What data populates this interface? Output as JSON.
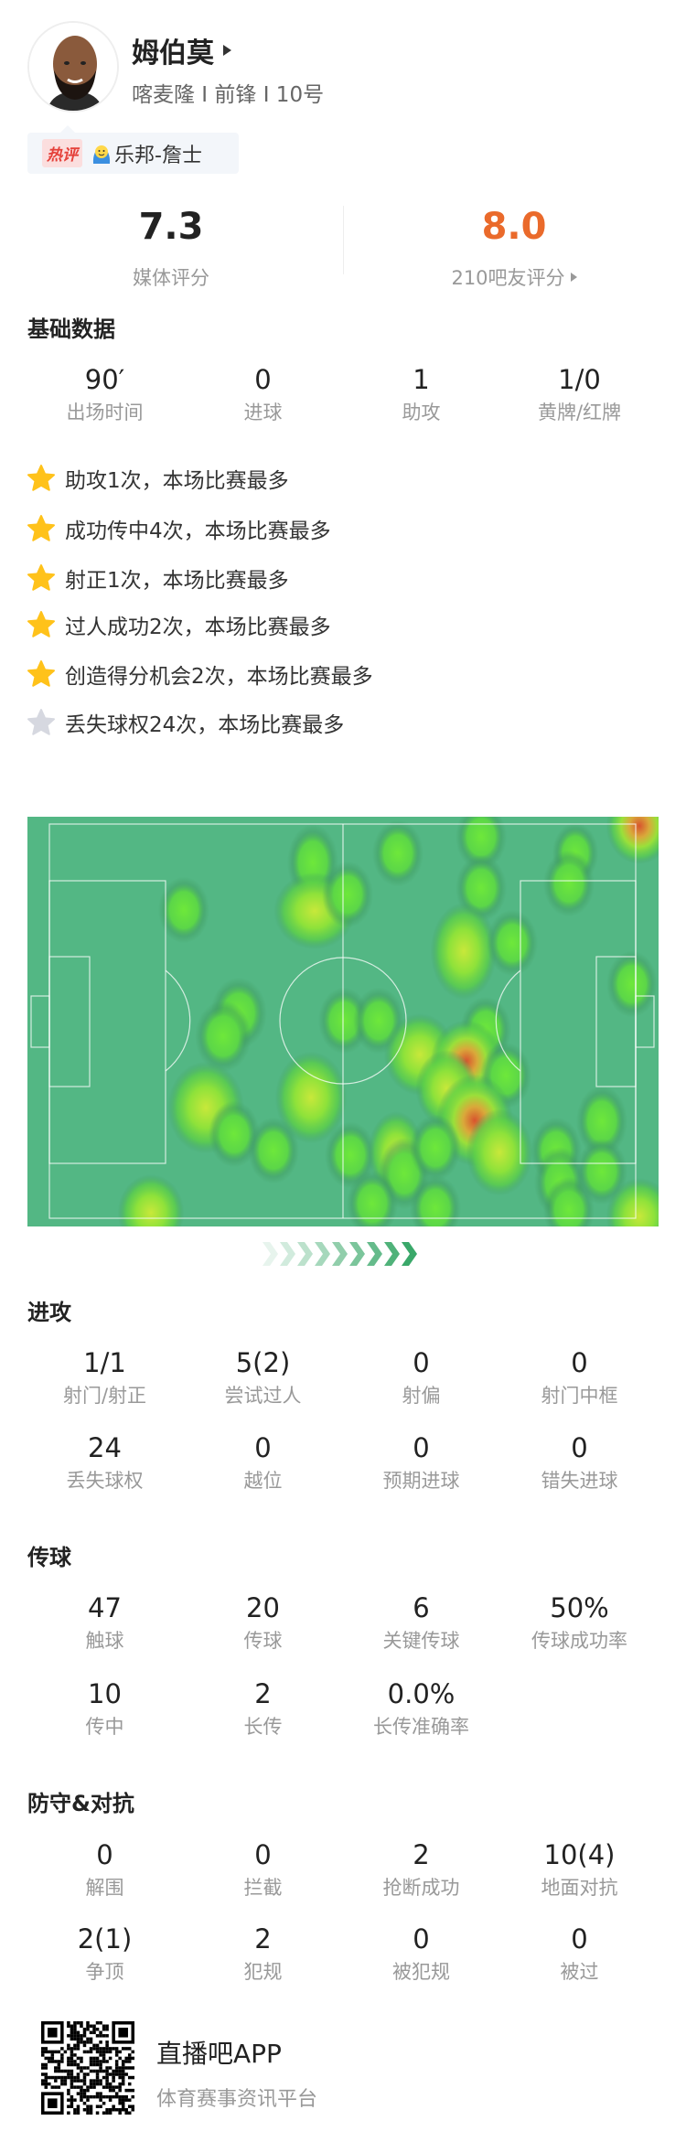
{
  "player": {
    "name": "姆伯莫",
    "subtitle": "喀麦隆 I 前锋 I 10号"
  },
  "hot_comment": {
    "tag": "热评",
    "user": "乐邦-詹士"
  },
  "ratings": {
    "media": {
      "value": "7.3",
      "label": "媒体评分"
    },
    "fans": {
      "value": "8.0",
      "label": "210吧友评分",
      "color": "#ea6a2b"
    }
  },
  "basic": {
    "title": "基础数据",
    "stats": [
      {
        "value": "90′",
        "label": "出场时间"
      },
      {
        "value": "0",
        "label": "进球"
      },
      {
        "value": "1",
        "label": "助攻"
      },
      {
        "value": "1/0",
        "label": "黄牌/红牌"
      }
    ]
  },
  "highlights": [
    {
      "text": "助攻1次，本场比赛最多",
      "star": "gold"
    },
    {
      "text": "成功传中4次，本场比赛最多",
      "star": "gold"
    },
    {
      "text": "射正1次，本场比赛最多",
      "star": "gold"
    },
    {
      "text": "过人成功2次，本场比赛最多",
      "star": "gold"
    },
    {
      "text": "创造得分机会2次，本场比赛最多",
      "star": "gold"
    },
    {
      "text": "丢失球权24次，本场比赛最多",
      "star": "silver"
    }
  ],
  "colors": {
    "pitch": "#53b784",
    "star_gold": "#ffc21a",
    "star_silver": "#d6d8e0",
    "accent": "#ea6a2b"
  },
  "attack": {
    "title": "进攻",
    "stats": [
      {
        "value": "1/1",
        "label": "射门/射正"
      },
      {
        "value": "5(2)",
        "label": "尝试过人"
      },
      {
        "value": "0",
        "label": "射偏"
      },
      {
        "value": "0",
        "label": "射门中框"
      },
      {
        "value": "24",
        "label": "丢失球权"
      },
      {
        "value": "0",
        "label": "越位"
      },
      {
        "value": "0",
        "label": "预期进球"
      },
      {
        "value": "0",
        "label": "错失进球"
      }
    ]
  },
  "passing": {
    "title": "传球",
    "stats": [
      {
        "value": "47",
        "label": "触球"
      },
      {
        "value": "20",
        "label": "传球"
      },
      {
        "value": "6",
        "label": "关键传球"
      },
      {
        "value": "50%",
        "label": "传球成功率"
      },
      {
        "value": "10",
        "label": "传中"
      },
      {
        "value": "2",
        "label": "长传"
      },
      {
        "value": "0.0%",
        "label": "长传准确率"
      }
    ]
  },
  "defense": {
    "title": "防守&对抗",
    "stats": [
      {
        "value": "0",
        "label": "解围"
      },
      {
        "value": "0",
        "label": "拦截"
      },
      {
        "value": "2",
        "label": "抢断成功"
      },
      {
        "value": "10(4)",
        "label": "地面对抗"
      },
      {
        "value": "2(1)",
        "label": "争顶"
      },
      {
        "value": "2",
        "label": "犯规"
      },
      {
        "value": "0",
        "label": "被犯规"
      },
      {
        "value": "0",
        "label": "被过"
      }
    ]
  },
  "footer": {
    "app_name": "直播吧APP",
    "tagline": "体育赛事资讯平台"
  }
}
